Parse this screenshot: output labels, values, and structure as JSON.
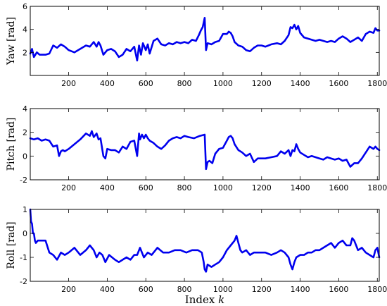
{
  "chart_data": [
    {
      "type": "line",
      "ylabel": "Yaw [rad]",
      "xlim": [
        1,
        1810
      ],
      "ylim": [
        0,
        6
      ],
      "xticks": [
        200,
        400,
        600,
        800,
        1000,
        1200,
        1400,
        1600,
        1800
      ],
      "yticks": [
        2,
        4,
        6
      ],
      "grid": false,
      "series": [
        {
          "color": "#0000ee",
          "x": [
            1,
            10,
            20,
            35,
            50,
            80,
            100,
            120,
            140,
            160,
            180,
            200,
            230,
            260,
            290,
            310,
            330,
            345,
            355,
            365,
            380,
            400,
            420,
            440,
            460,
            480,
            500,
            520,
            540,
            555,
            565,
            575,
            585,
            600,
            610,
            620,
            640,
            660,
            680,
            700,
            720,
            740,
            760,
            780,
            800,
            820,
            840,
            860,
            875,
            885,
            895,
            905,
            912,
            920,
            940,
            960,
            980,
            1000,
            1020,
            1030,
            1040,
            1050,
            1060,
            1080,
            1100,
            1120,
            1140,
            1160,
            1180,
            1200,
            1220,
            1250,
            1280,
            1300,
            1320,
            1340,
            1350,
            1360,
            1370,
            1380,
            1390,
            1400,
            1420,
            1440,
            1460,
            1480,
            1500,
            1520,
            1540,
            1560,
            1580,
            1600,
            1620,
            1640,
            1660,
            1680,
            1700,
            1720,
            1740,
            1760,
            1780,
            1790,
            1800,
            1810
          ],
          "y": [
            1.9,
            2.3,
            1.6,
            2.0,
            1.8,
            1.8,
            1.9,
            2.6,
            2.4,
            2.7,
            2.5,
            2.2,
            2.0,
            2.3,
            2.6,
            2.5,
            2.9,
            2.5,
            2.9,
            2.6,
            1.8,
            2.2,
            2.3,
            2.1,
            1.6,
            1.8,
            2.3,
            2.1,
            2.5,
            1.3,
            2.6,
            1.8,
            2.8,
            2.2,
            2.7,
            1.9,
            3.0,
            3.2,
            2.7,
            2.6,
            2.8,
            2.7,
            2.9,
            2.8,
            2.9,
            2.8,
            3.1,
            3.0,
            3.5,
            3.9,
            4.2,
            5.0,
            2.2,
            2.8,
            2.7,
            2.9,
            3.0,
            3.6,
            3.6,
            3.8,
            3.7,
            3.4,
            2.9,
            2.6,
            2.5,
            2.2,
            2.1,
            2.4,
            2.6,
            2.6,
            2.5,
            2.7,
            2.8,
            2.7,
            3.0,
            3.5,
            4.2,
            4.1,
            4.4,
            4.0,
            4.3,
            3.7,
            3.3,
            3.2,
            3.1,
            3.0,
            3.1,
            3.0,
            2.9,
            3.0,
            2.9,
            3.2,
            3.4,
            3.2,
            2.9,
            3.1,
            3.3,
            3.0,
            3.6,
            3.8,
            3.7,
            4.1,
            3.9,
            3.9
          ]
        }
      ]
    },
    {
      "type": "line",
      "ylabel": "Pitch [rad]",
      "xlim": [
        1,
        1810
      ],
      "ylim": [
        -2,
        4
      ],
      "xticks": [
        200,
        400,
        600,
        800,
        1000,
        1200,
        1400,
        1600,
        1800
      ],
      "yticks": [
        -2,
        0,
        2,
        4
      ],
      "grid": false,
      "series": [
        {
          "color": "#0000ee",
          "x": [
            1,
            20,
            40,
            60,
            80,
            100,
            120,
            140,
            150,
            160,
            170,
            180,
            200,
            230,
            260,
            290,
            310,
            320,
            330,
            345,
            355,
            365,
            380,
            390,
            400,
            420,
            440,
            460,
            480,
            500,
            520,
            540,
            555,
            565,
            570,
            580,
            590,
            600,
            610,
            620,
            640,
            660,
            680,
            700,
            720,
            740,
            760,
            780,
            800,
            820,
            850,
            880,
            905,
            912,
            920,
            930,
            945,
            960,
            980,
            1000,
            1020,
            1030,
            1040,
            1050,
            1060,
            1080,
            1100,
            1120,
            1140,
            1160,
            1180,
            1200,
            1220,
            1250,
            1280,
            1300,
            1320,
            1340,
            1350,
            1360,
            1370,
            1380,
            1390,
            1400,
            1420,
            1440,
            1460,
            1480,
            1500,
            1520,
            1540,
            1560,
            1580,
            1600,
            1620,
            1640,
            1660,
            1680,
            1700,
            1720,
            1740,
            1760,
            1780,
            1790,
            1800,
            1810
          ],
          "y": [
            1.5,
            1.4,
            1.5,
            1.3,
            1.4,
            1.3,
            0.8,
            0.9,
            0.0,
            0.4,
            0.5,
            0.4,
            0.6,
            1.0,
            1.4,
            1.9,
            1.7,
            2.1,
            1.6,
            1.9,
            1.4,
            1.5,
            0.0,
            -0.2,
            0.6,
            0.5,
            0.5,
            0.3,
            0.8,
            0.6,
            1.2,
            1.3,
            0.0,
            1.9,
            1.4,
            1.8,
            1.5,
            1.8,
            1.5,
            1.3,
            1.1,
            0.8,
            0.6,
            0.9,
            1.3,
            1.5,
            1.6,
            1.5,
            1.7,
            1.6,
            1.5,
            1.7,
            1.8,
            -1.1,
            -0.5,
            -0.4,
            -0.6,
            0.2,
            0.6,
            0.7,
            1.3,
            1.6,
            1.7,
            1.5,
            1.0,
            0.5,
            0.3,
            0.0,
            0.2,
            -0.5,
            -0.2,
            -0.2,
            -0.2,
            -0.1,
            0.0,
            0.4,
            0.2,
            0.5,
            0.0,
            0.5,
            0.4,
            1.0,
            0.6,
            0.3,
            0.1,
            -0.1,
            0.0,
            -0.1,
            -0.2,
            -0.3,
            -0.1,
            -0.2,
            -0.3,
            -0.2,
            -0.4,
            -0.3,
            -0.9,
            -0.6,
            -0.6,
            -0.2,
            0.3,
            0.8,
            0.6,
            0.8,
            0.6,
            0.5
          ]
        }
      ]
    },
    {
      "type": "line",
      "ylabel": "Roll [rad]",
      "xlabel": "Index k",
      "xlim": [
        1,
        1810
      ],
      "ylim": [
        -2,
        1
      ],
      "xticks": [
        200,
        400,
        600,
        800,
        1000,
        1200,
        1400,
        1600,
        1800
      ],
      "yticks": [
        -2,
        -1,
        0,
        1
      ],
      "grid": false,
      "series": [
        {
          "color": "#0000ee",
          "x": [
            1,
            5,
            10,
            15,
            20,
            25,
            30,
            40,
            60,
            80,
            100,
            120,
            140,
            160,
            180,
            200,
            230,
            260,
            290,
            310,
            330,
            345,
            360,
            375,
            390,
            410,
            440,
            460,
            480,
            500,
            520,
            540,
            555,
            570,
            590,
            610,
            630,
            660,
            690,
            720,
            750,
            780,
            810,
            840,
            870,
            890,
            900,
            905,
            912,
            920,
            940,
            960,
            980,
            1000,
            1020,
            1040,
            1060,
            1070,
            1080,
            1090,
            1100,
            1120,
            1140,
            1160,
            1180,
            1200,
            1220,
            1250,
            1280,
            1300,
            1320,
            1340,
            1350,
            1360,
            1370,
            1380,
            1400,
            1420,
            1440,
            1460,
            1480,
            1500,
            1520,
            1540,
            1560,
            1580,
            1600,
            1620,
            1640,
            1660,
            1670,
            1680,
            1700,
            1720,
            1740,
            1760,
            1780,
            1790,
            1800,
            1810
          ],
          "y": [
            1.0,
            0.5,
            0.4,
            0.0,
            0.0,
            -0.3,
            -0.4,
            -0.3,
            -0.3,
            -0.3,
            -0.8,
            -0.9,
            -1.1,
            -0.8,
            -0.9,
            -0.8,
            -0.6,
            -0.9,
            -0.7,
            -0.5,
            -0.7,
            -1.0,
            -0.8,
            -0.9,
            -1.2,
            -0.9,
            -1.1,
            -1.2,
            -1.1,
            -1.0,
            -1.1,
            -0.9,
            -0.9,
            -0.6,
            -1.0,
            -0.8,
            -0.9,
            -0.6,
            -0.8,
            -0.8,
            -0.7,
            -0.7,
            -0.8,
            -0.7,
            -0.7,
            -0.8,
            -1.2,
            -1.5,
            -1.6,
            -1.3,
            -1.4,
            -1.3,
            -1.2,
            -1.0,
            -0.7,
            -0.5,
            -0.3,
            -0.1,
            -0.4,
            -0.7,
            -0.8,
            -0.7,
            -0.9,
            -0.8,
            -0.8,
            -0.8,
            -0.8,
            -0.9,
            -0.8,
            -0.7,
            -0.8,
            -1.0,
            -1.3,
            -1.5,
            -1.2,
            -1.0,
            -0.9,
            -0.9,
            -0.8,
            -0.8,
            -0.7,
            -0.7,
            -0.6,
            -0.5,
            -0.4,
            -0.6,
            -0.4,
            -0.3,
            -0.5,
            -0.5,
            -0.2,
            -0.3,
            -0.7,
            -0.6,
            -0.8,
            -0.9,
            -1.0,
            -0.7,
            -0.6,
            -1.0
          ]
        }
      ]
    }
  ]
}
